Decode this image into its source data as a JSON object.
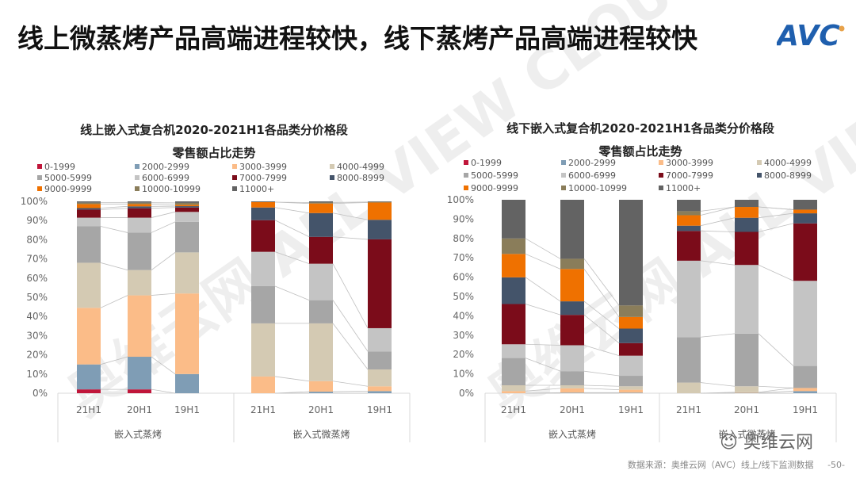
{
  "header": {
    "title": "线上微蒸烤产品高端进程较快，线下蒸烤产品高端进程较快",
    "logo_text": "AVC"
  },
  "footer": {
    "source": "数据来源：奥维云网（AVC）线上/线下监测数据",
    "page": "-50-",
    "wechat_label": "奥维云网"
  },
  "watermark": "奥维云网 ALL VIEW CLOUD",
  "chart_data": [
    {
      "type": "bar",
      "stacked": "percent",
      "title": "线上嵌入式复合机2020-2021H1各品类分价格段",
      "subtitle": "零售额占比走势",
      "legend_position": "top",
      "ylim": [
        0,
        100
      ],
      "yticks": [
        "0%",
        "10%",
        "20%",
        "30%",
        "40%",
        "50%",
        "60%",
        "70%",
        "80%",
        "90%",
        "100%"
      ],
      "series_lines": true,
      "groups": [
        {
          "label": "嵌入式蒸烤",
          "categories": [
            "21H1",
            "20H1",
            "19H1"
          ]
        },
        {
          "label": "嵌入式微蒸烤",
          "categories": [
            "21H1",
            "20H1",
            "19H1"
          ]
        }
      ],
      "series": [
        {
          "name": "0-1999",
          "color": "#c0163a",
          "values": [
            [
              2,
              2,
              0
            ],
            [
              0,
              0,
              0
            ]
          ]
        },
        {
          "name": "2000-2999",
          "color": "#7f9db5",
          "values": [
            [
              13,
              17,
              10
            ],
            [
              0,
              0.8,
              1.1
            ]
          ]
        },
        {
          "name": "3000-3999",
          "color": "#fbbc88",
          "values": [
            [
              29.5,
              32,
              42
            ],
            [
              8.7,
              5.5,
              2.5
            ]
          ]
        },
        {
          "name": "4000-4999",
          "color": "#d4cab3",
          "values": [
            [
              23.5,
              13.2,
              21.4
            ],
            [
              27.7,
              30.1,
              8.8
            ]
          ]
        },
        {
          "name": "5000-5999",
          "color": "#a6a6a6",
          "values": [
            [
              19,
              19.5,
              15.9
            ],
            [
              19.4,
              12.1,
              9.4
            ]
          ]
        },
        {
          "name": "6000-6999",
          "color": "#c4c4c4",
          "values": [
            [
              4.5,
              7.8,
              5.2
            ],
            [
              17.9,
              19,
              12.1
            ]
          ]
        },
        {
          "name": "7000-7999",
          "color": "#7b0c1a",
          "values": [
            [
              4.2,
              4.9,
              2.3
            ],
            [
              16.5,
              14,
              46.3
            ]
          ]
        },
        {
          "name": "8000-8999",
          "color": "#44546a",
          "values": [
            [
              0.8,
              1,
              0.7
            ],
            [
              6.6,
              12.4,
              10.2
            ]
          ]
        },
        {
          "name": "9000-9999",
          "color": "#ef7100",
          "values": [
            [
              2.1,
              1.2,
              0.7
            ],
            [
              2.8,
              5,
              9
            ]
          ]
        },
        {
          "name": "10000-10999",
          "color": "#8a7d5a",
          "values": [
            [
              0.7,
              0.7,
              1
            ],
            [
              0,
              0.5,
              0.3
            ]
          ]
        },
        {
          "name": "11000+",
          "color": "#636363",
          "values": [
            [
              0.7,
              0.7,
              0.8
            ],
            [
              0.4,
              0.6,
              0.3
            ]
          ]
        }
      ]
    },
    {
      "type": "bar",
      "stacked": "percent",
      "title": "线下嵌入式复合机2020-2021H1各品类分价格段",
      "subtitle": "零售额占比走势",
      "legend_position": "top",
      "ylim": [
        0,
        100
      ],
      "yticks": [
        "0%",
        "10%",
        "20%",
        "30%",
        "40%",
        "50%",
        "60%",
        "70%",
        "80%",
        "90%",
        "100%"
      ],
      "series_lines": true,
      "groups": [
        {
          "label": "嵌入式蒸烤",
          "categories": [
            "21H1",
            "20H1",
            "19H1"
          ]
        },
        {
          "label": "嵌入式微蒸烤",
          "categories": [
            "21H1",
            "20H1",
            "19H1"
          ]
        }
      ],
      "series": [
        {
          "name": "0-1999",
          "color": "#c0163a",
          "values": [
            [
              0,
              0,
              0
            ],
            [
              0,
              0,
              0
            ]
          ]
        },
        {
          "name": "2000-2999",
          "color": "#7f9db5",
          "values": [
            [
              0,
              0.3,
              0.3
            ],
            [
              0,
              0.2,
              1.1
            ]
          ]
        },
        {
          "name": "3000-3999",
          "color": "#fbbc88",
          "values": [
            [
              1.1,
              2.2,
              1.5
            ],
            [
              0,
              0.3,
              1.6
            ]
          ]
        },
        {
          "name": "4000-4999",
          "color": "#d4cab3",
          "values": [
            [
              3,
              1.6,
              1.8
            ],
            [
              5.5,
              3.1,
              0
            ]
          ]
        },
        {
          "name": "5000-5999",
          "color": "#a6a6a6",
          "values": [
            [
              14.1,
              7.3,
              5.4
            ],
            [
              23.5,
              27.2,
              11.4
            ]
          ]
        },
        {
          "name": "6000-6999",
          "color": "#c4c4c4",
          "values": [
            [
              7.1,
              13.4,
              10.4
            ],
            [
              39.5,
              35.5,
              44
            ]
          ]
        },
        {
          "name": "7000-7999",
          "color": "#7b0c1a",
          "values": [
            [
              20.8,
              15.7,
              6.5
            ],
            [
              15.4,
              17.1,
              29.7
            ]
          ]
        },
        {
          "name": "8000-8999",
          "color": "#44546a",
          "values": [
            [
              13.8,
              7,
              7.5
            ],
            [
              2.7,
              7.3,
              5.2
            ]
          ]
        },
        {
          "name": "9000-9999",
          "color": "#ef7100",
          "values": [
            [
              12.1,
              16.7,
              6
            ],
            [
              5.4,
              5.6,
              1.9
            ]
          ]
        },
        {
          "name": "10000-10999",
          "color": "#8a7d5a",
          "values": [
            [
              8,
              5.3,
              6
            ],
            [
              2.1,
              0,
              0
            ]
          ]
        },
        {
          "name": "11000+",
          "color": "#636363",
          "values": [
            [
              20,
              30.5,
              54.6
            ],
            [
              5.9,
              3.7,
              5.1
            ]
          ]
        }
      ]
    }
  ]
}
